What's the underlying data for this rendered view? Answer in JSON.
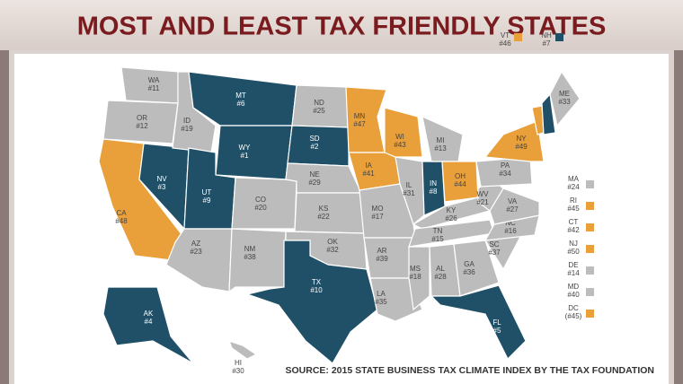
{
  "title": "MOST AND LEAST TAX FRIENDLY STATES",
  "source": "SOURCE: 2015 STATE BUSINESS TAX CLIMATE INDEX BY THE TAX FOUNDATION",
  "colors": {
    "most": "#1f5068",
    "least": "#e9a03b",
    "other": "#bcbcbc"
  },
  "states": [
    {
      "abbr": "WA",
      "rank": "#11",
      "group": "other"
    },
    {
      "abbr": "OR",
      "rank": "#12",
      "group": "other"
    },
    {
      "abbr": "CA",
      "rank": "#48",
      "group": "least"
    },
    {
      "abbr": "NV",
      "rank": "#3",
      "group": "most"
    },
    {
      "abbr": "ID",
      "rank": "#19",
      "group": "other"
    },
    {
      "abbr": "MT",
      "rank": "#6",
      "group": "most"
    },
    {
      "abbr": "WY",
      "rank": "#1",
      "group": "most"
    },
    {
      "abbr": "UT",
      "rank": "#9",
      "group": "most"
    },
    {
      "abbr": "CO",
      "rank": "#20",
      "group": "other"
    },
    {
      "abbr": "AZ",
      "rank": "#23",
      "group": "other"
    },
    {
      "abbr": "NM",
      "rank": "#38",
      "group": "other"
    },
    {
      "abbr": "ND",
      "rank": "#25",
      "group": "other"
    },
    {
      "abbr": "SD",
      "rank": "#2",
      "group": "most"
    },
    {
      "abbr": "NE",
      "rank": "#29",
      "group": "other"
    },
    {
      "abbr": "KS",
      "rank": "#22",
      "group": "other"
    },
    {
      "abbr": "OK",
      "rank": "#32",
      "group": "other"
    },
    {
      "abbr": "TX",
      "rank": "#10",
      "group": "most"
    },
    {
      "abbr": "MN",
      "rank": "#47",
      "group": "least"
    },
    {
      "abbr": "IA",
      "rank": "#41",
      "group": "least"
    },
    {
      "abbr": "MO",
      "rank": "#17",
      "group": "other"
    },
    {
      "abbr": "AR",
      "rank": "#39",
      "group": "other"
    },
    {
      "abbr": "LA",
      "rank": "#35",
      "group": "other"
    },
    {
      "abbr": "WI",
      "rank": "#43",
      "group": "least"
    },
    {
      "abbr": "IL",
      "rank": "#31",
      "group": "other"
    },
    {
      "abbr": "IN",
      "rank": "#8",
      "group": "most"
    },
    {
      "abbr": "MI",
      "rank": "#13",
      "group": "other"
    },
    {
      "abbr": "OH",
      "rank": "#44",
      "group": "least"
    },
    {
      "abbr": "KY",
      "rank": "#26",
      "group": "other"
    },
    {
      "abbr": "TN",
      "rank": "#15",
      "group": "other"
    },
    {
      "abbr": "MS",
      "rank": "#18",
      "group": "other"
    },
    {
      "abbr": "AL",
      "rank": "#28",
      "group": "other"
    },
    {
      "abbr": "GA",
      "rank": "#36",
      "group": "other"
    },
    {
      "abbr": "FL",
      "rank": "#5",
      "group": "most"
    },
    {
      "abbr": "SC",
      "rank": "#37",
      "group": "other"
    },
    {
      "abbr": "NC",
      "rank": "#16",
      "group": "other"
    },
    {
      "abbr": "VA",
      "rank": "#27",
      "group": "other"
    },
    {
      "abbr": "WV",
      "rank": "#21",
      "group": "other"
    },
    {
      "abbr": "PA",
      "rank": "#34",
      "group": "other"
    },
    {
      "abbr": "NY",
      "rank": "#49",
      "group": "least"
    },
    {
      "abbr": "VT",
      "rank": "#46",
      "group": "least"
    },
    {
      "abbr": "NH",
      "rank": "#7",
      "group": "most"
    },
    {
      "abbr": "ME",
      "rank": "#33",
      "group": "other"
    },
    {
      "abbr": "AK",
      "rank": "#4",
      "group": "most"
    },
    {
      "abbr": "HI",
      "rank": "#30",
      "group": "other"
    }
  ],
  "small_states": [
    {
      "abbr": "MA",
      "rank": "#24",
      "group": "other"
    },
    {
      "abbr": "RI",
      "rank": "#45",
      "group": "least"
    },
    {
      "abbr": "CT",
      "rank": "#42",
      "group": "least"
    },
    {
      "abbr": "NJ",
      "rank": "#50",
      "group": "least"
    },
    {
      "abbr": "DE",
      "rank": "#14",
      "group": "other"
    },
    {
      "abbr": "MD",
      "rank": "#40",
      "group": "other"
    },
    {
      "abbr": "DC",
      "rank": "(#45)",
      "group": "least"
    }
  ]
}
